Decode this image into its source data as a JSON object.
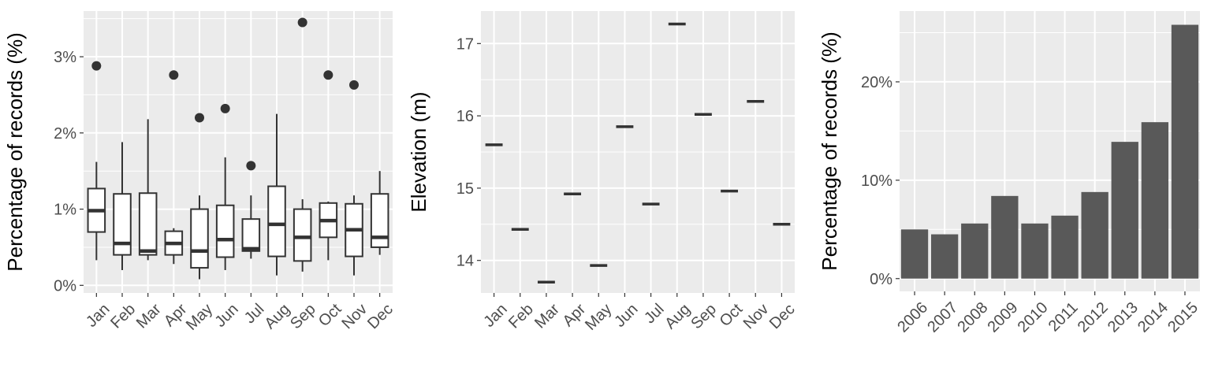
{
  "colors": {
    "panel_background": "#ebebeb",
    "grid": "#ffffff",
    "ink": "#333333",
    "bar_fill": "#595959"
  },
  "chart_data": [
    {
      "type": "box",
      "title": "",
      "xlabel": "",
      "ylabel": "Percentage of records (%)",
      "categories": [
        "Jan",
        "Feb",
        "Mar",
        "Apr",
        "May",
        "Jun",
        "Jul",
        "Aug",
        "Sep",
        "Oct",
        "Nov",
        "Dec"
      ],
      "yticks": [
        0,
        1,
        2,
        3
      ],
      "ytick_labels": [
        "0%",
        "1%",
        "2%",
        "3%"
      ],
      "ylim": [
        -0.1,
        3.6
      ],
      "grid": true,
      "series": [
        {
          "boxes": [
            {
              "min": 0.33,
              "q1": 0.7,
              "median": 0.98,
              "q3": 1.27,
              "max": 1.62,
              "outliers": [
                2.88
              ]
            },
            {
              "min": 0.2,
              "q1": 0.4,
              "median": 0.55,
              "q3": 1.2,
              "max": 1.88,
              "outliers": []
            },
            {
              "min": 0.33,
              "q1": 0.4,
              "median": 0.45,
              "q3": 1.21,
              "max": 2.18,
              "outliers": []
            },
            {
              "min": 0.28,
              "q1": 0.4,
              "median": 0.55,
              "q3": 0.71,
              "max": 0.75,
              "outliers": [
                2.76
              ]
            },
            {
              "min": 0.08,
              "q1": 0.23,
              "median": 0.45,
              "q3": 1.0,
              "max": 1.18,
              "outliers": [
                2.2
              ]
            },
            {
              "min": 0.2,
              "q1": 0.37,
              "median": 0.6,
              "q3": 1.05,
              "max": 1.68,
              "outliers": [
                2.32
              ]
            },
            {
              "min": 0.35,
              "q1": 0.45,
              "median": 0.48,
              "q3": 0.87,
              "max": 1.18,
              "outliers": [
                1.57
              ]
            },
            {
              "min": 0.13,
              "q1": 0.38,
              "median": 0.8,
              "q3": 1.3,
              "max": 2.25,
              "outliers": []
            },
            {
              "min": 0.18,
              "q1": 0.32,
              "median": 0.63,
              "q3": 1.0,
              "max": 1.13,
              "outliers": [
                3.45
              ]
            },
            {
              "min": 0.33,
              "q1": 0.63,
              "median": 0.85,
              "q3": 1.08,
              "max": 1.1,
              "outliers": [
                2.76
              ]
            },
            {
              "min": 0.13,
              "q1": 0.38,
              "median": 0.73,
              "q3": 1.07,
              "max": 1.18,
              "outliers": [
                2.63
              ]
            },
            {
              "min": 0.4,
              "q1": 0.5,
              "median": 0.63,
              "q3": 1.2,
              "max": 1.5,
              "outliers": []
            }
          ]
        }
      ]
    },
    {
      "type": "box",
      "title": "",
      "xlabel": "",
      "ylabel": "Elevation (m)",
      "categories": [
        "Jan",
        "Feb",
        "Mar",
        "Apr",
        "May",
        "Jun",
        "Jul",
        "Aug",
        "Sep",
        "Oct",
        "Nov",
        "Dec"
      ],
      "values": [
        15.6,
        14.43,
        13.7,
        14.92,
        13.93,
        15.85,
        14.78,
        17.27,
        16.02,
        14.96,
        16.2,
        14.5
      ],
      "yticks": [
        14,
        15,
        16,
        17
      ],
      "ytick_labels": [
        "14",
        "15",
        "16",
        "17"
      ],
      "ylim": [
        13.55,
        17.45
      ],
      "grid": true
    },
    {
      "type": "bar",
      "title": "",
      "xlabel": "",
      "ylabel": "Percentage of records (%)",
      "categories": [
        "2006",
        "2007",
        "2008",
        "2009",
        "2010",
        "2011",
        "2012",
        "2013",
        "2014",
        "2015"
      ],
      "values": [
        5.0,
        4.5,
        5.6,
        8.4,
        5.6,
        6.4,
        8.8,
        13.9,
        15.9,
        25.8
      ],
      "yticks": [
        0,
        10,
        20
      ],
      "ytick_labels": [
        "0%",
        "10%",
        "20%"
      ],
      "ylim": [
        -1.3,
        27.2
      ],
      "grid": true
    }
  ]
}
